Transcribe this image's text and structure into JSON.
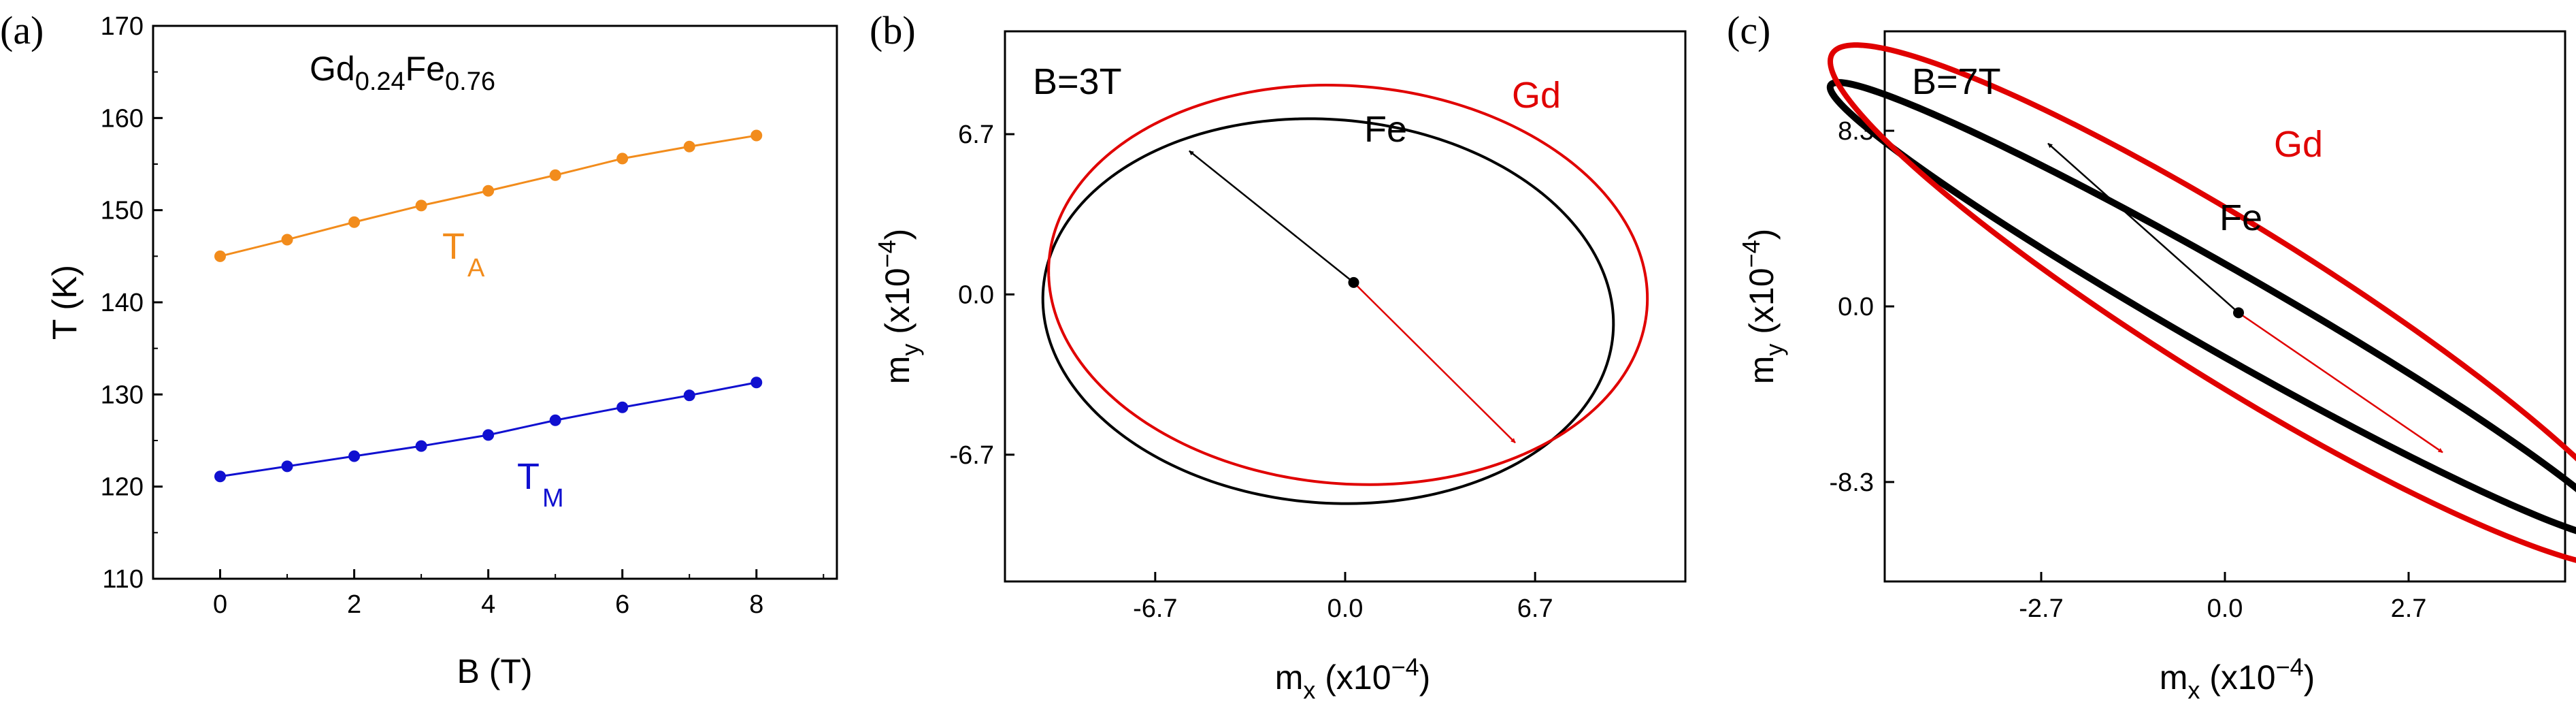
{
  "panel_labels": [
    "(a)",
    "(b)",
    "(c)"
  ],
  "chart_data": [
    {
      "type": "line",
      "panel": "(a)",
      "xlabel": "B (T)",
      "ylabel": "T (K)",
      "xlim": [
        -1,
        9.2
      ],
      "ylim": [
        110,
        170
      ],
      "xticks": [
        0,
        2,
        4,
        6,
        8
      ],
      "yticks": [
        110,
        120,
        130,
        140,
        150,
        160,
        170
      ],
      "annotation": {
        "base": "Gd",
        "sub1": "0.24",
        "mid": "Fe",
        "sub2": "0.76"
      },
      "series": [
        {
          "name": "T_A",
          "label_main": "T",
          "label_sub": "A",
          "color": "#F28C1C",
          "x": [
            0,
            1,
            2,
            3,
            4,
            5,
            6,
            7,
            8
          ],
          "y": [
            145.0,
            146.8,
            148.7,
            150.5,
            152.1,
            153.8,
            155.6,
            156.9,
            158.1
          ]
        },
        {
          "name": "T_M",
          "label_main": "T",
          "label_sub": "M",
          "color": "#1010D0",
          "x": [
            0,
            1,
            2,
            3,
            4,
            5,
            6,
            7,
            8
          ],
          "y": [
            121.1,
            122.2,
            123.3,
            124.4,
            125.6,
            127.2,
            128.6,
            129.9,
            131.3
          ]
        }
      ]
    },
    {
      "type": "line",
      "panel": "(b)",
      "field_label": "B=3T",
      "xlabel": {
        "main": "m",
        "sub": "x",
        "rest": " (x10",
        "sup": "−4",
        "close": ")"
      },
      "ylabel": {
        "main": "m",
        "sub": "y",
        "rest": " (x10",
        "sup": "−4",
        "close": ")"
      },
      "xlim": [
        -12,
        12
      ],
      "ylim": [
        -12,
        11
      ],
      "xticks": [
        "-6.7",
        "0.0",
        "6.7"
      ],
      "yticks": [
        "-6.7",
        "0.0",
        "6.7"
      ],
      "series": [
        {
          "name": "Fe",
          "color": "#000000",
          "trajectory": {
            "cx": -0.6,
            "cy": -0.7,
            "rx": 10.1,
            "ry": 8.0,
            "tilt_deg": -8
          }
        },
        {
          "name": "Gd",
          "color": "#E00000",
          "trajectory": {
            "cx": 0.1,
            "cy": 0.4,
            "rx": 10.6,
            "ry": 8.3,
            "tilt_deg": -8
          }
        }
      ],
      "vectors": [
        {
          "name": "Fe",
          "color": "#000000",
          "from": [
            0.3,
            0.5
          ],
          "to": [
            -5.5,
            6.0
          ]
        },
        {
          "name": "Gd",
          "color": "#E00000",
          "from": [
            0.3,
            0.5
          ],
          "to": [
            6.0,
            -6.2
          ]
        }
      ]
    },
    {
      "type": "line",
      "panel": "(c)",
      "field_label": "B=7T",
      "xlabel": {
        "main": "m",
        "sub": "x",
        "rest": " (x10",
        "sup": "−4",
        "close": ")"
      },
      "ylabel": {
        "main": "m",
        "sub": "y",
        "rest": " (x10",
        "sup": "−4",
        "close": ")"
      },
      "xlim": [
        -5.0,
        5.0
      ],
      "ylim": [
        -13.0,
        13.0
      ],
      "xticks": [
        "-2.7",
        "0.0",
        "2.7"
      ],
      "yticks": [
        "-8.3",
        "0.0",
        "8.3"
      ],
      "series": [
        {
          "name": "Fe",
          "color": "#000000",
          "trajectory": {
            "cx": 0.0,
            "cy": -0.2,
            "rx": 12.2,
            "ry": 1.05,
            "tilt_deg": -62
          }
        },
        {
          "name": "Gd",
          "color": "#E00000",
          "trajectory": {
            "cx": 0.2,
            "cy": 0.0,
            "rx": 13.6,
            "ry": 1.9,
            "tilt_deg": -65
          }
        }
      ],
      "vectors": [
        {
          "name": "Fe",
          "color": "#000000",
          "from": [
            0.2,
            -0.3
          ],
          "to": [
            -2.6,
            7.7
          ]
        },
        {
          "name": "Gd",
          "color": "#E00000",
          "from": [
            0.2,
            -0.3
          ],
          "to": [
            3.2,
            -6.9
          ]
        }
      ]
    }
  ]
}
